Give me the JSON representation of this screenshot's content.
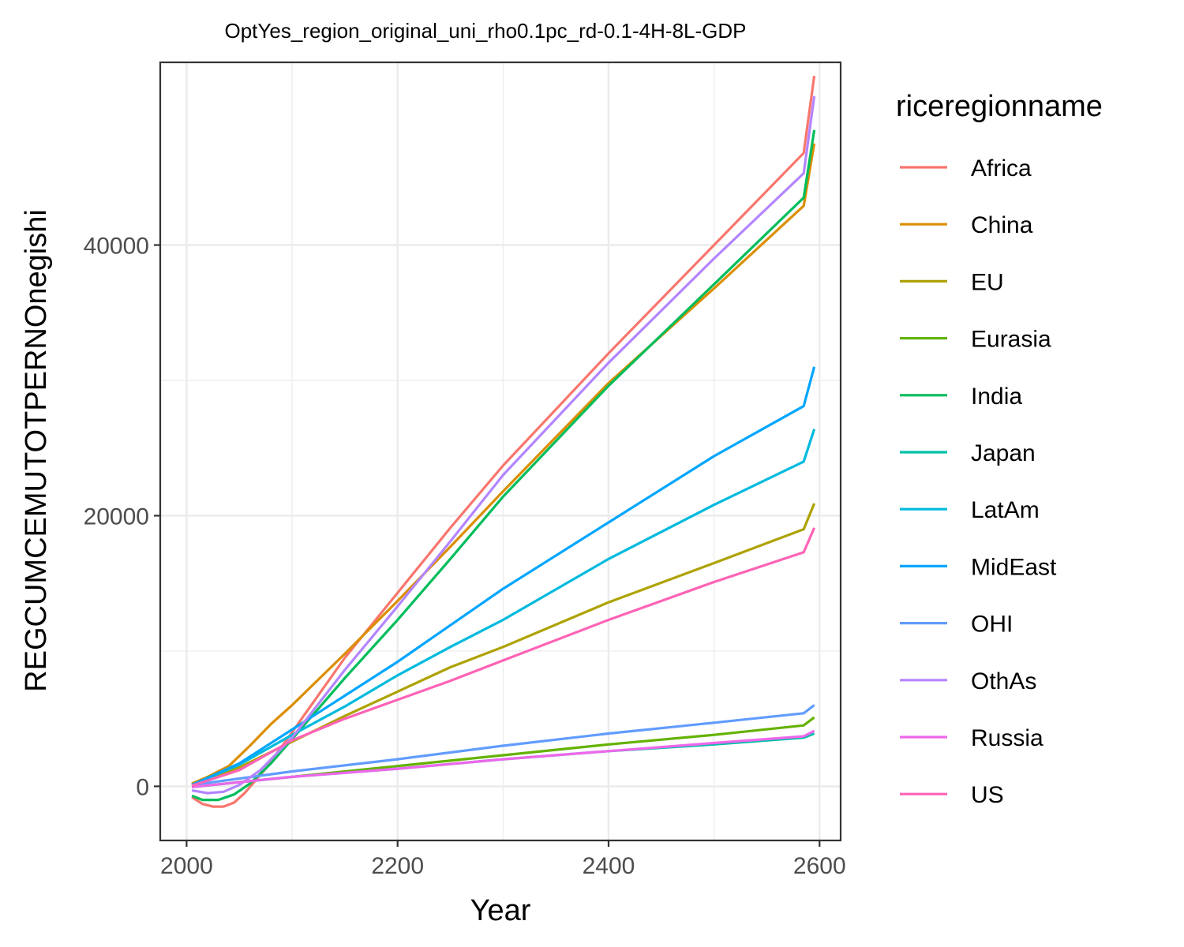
{
  "chart_data": {
    "type": "line",
    "title": "OptYes_region_original_uni_rho0.1pc_rd-0.1-4H-8L-GDP",
    "xlabel": "Year",
    "ylabel": "REGCUMCEMUTOTPERNOnegishi",
    "xlim": [
      1975,
      2620
    ],
    "ylim": [
      -4000,
      53500
    ],
    "x_ticks": [
      2000,
      2200,
      2400,
      2600
    ],
    "y_ticks": [
      0,
      20000,
      40000
    ],
    "x_tick_labels": [
      "2000",
      "2200",
      "2400",
      "2600"
    ],
    "y_tick_labels": [
      "0",
      "20000",
      "40000"
    ],
    "grid": true,
    "legend": {
      "title": "riceregionname",
      "position": "right"
    },
    "series": [
      {
        "name": "Africa",
        "color": "#F8766D",
        "points": [
          [
            2005,
            -800
          ],
          [
            2015,
            -1300
          ],
          [
            2025,
            -1500
          ],
          [
            2035,
            -1500
          ],
          [
            2045,
            -1200
          ],
          [
            2055,
            -500
          ],
          [
            2075,
            1300
          ],
          [
            2100,
            4000
          ],
          [
            2150,
            9500
          ],
          [
            2200,
            14300
          ],
          [
            2250,
            19100
          ],
          [
            2300,
            23700
          ],
          [
            2400,
            32000
          ],
          [
            2500,
            40000
          ],
          [
            2585,
            46800
          ],
          [
            2595,
            52500
          ]
        ]
      },
      {
        "name": "China",
        "color": "#DB8E00",
        "points": [
          [
            2005,
            200
          ],
          [
            2020,
            700
          ],
          [
            2040,
            1500
          ],
          [
            2060,
            3000
          ],
          [
            2080,
            4600
          ],
          [
            2100,
            6000
          ],
          [
            2150,
            9800
          ],
          [
            2200,
            13700
          ],
          [
            2250,
            17700
          ],
          [
            2300,
            21800
          ],
          [
            2400,
            29800
          ],
          [
            2500,
            36800
          ],
          [
            2585,
            42900
          ],
          [
            2595,
            47500
          ]
        ]
      },
      {
        "name": "EU",
        "color": "#AEA200",
        "points": [
          [
            2005,
            150
          ],
          [
            2050,
            1400
          ],
          [
            2100,
            3300
          ],
          [
            2150,
            5200
          ],
          [
            2200,
            7000
          ],
          [
            2250,
            8800
          ],
          [
            2300,
            10300
          ],
          [
            2400,
            13600
          ],
          [
            2500,
            16500
          ],
          [
            2585,
            19000
          ],
          [
            2595,
            20900
          ]
        ]
      },
      {
        "name": "Eurasia",
        "color": "#64B200",
        "points": [
          [
            2005,
            -50
          ],
          [
            2100,
            700
          ],
          [
            2200,
            1500
          ],
          [
            2300,
            2300
          ],
          [
            2400,
            3100
          ],
          [
            2500,
            3800
          ],
          [
            2585,
            4500
          ],
          [
            2595,
            5100
          ]
        ]
      },
      {
        "name": "India",
        "color": "#00BD5C",
        "points": [
          [
            2005,
            -700
          ],
          [
            2015,
            -1000
          ],
          [
            2030,
            -1000
          ],
          [
            2045,
            -600
          ],
          [
            2060,
            200
          ],
          [
            2080,
            1700
          ],
          [
            2100,
            3500
          ],
          [
            2150,
            8000
          ],
          [
            2200,
            12300
          ],
          [
            2250,
            16800
          ],
          [
            2300,
            21400
          ],
          [
            2400,
            29600
          ],
          [
            2500,
            37100
          ],
          [
            2585,
            43500
          ],
          [
            2595,
            48500
          ]
        ]
      },
      {
        "name": "Japan",
        "color": "#00C1A7",
        "points": [
          [
            2005,
            -50
          ],
          [
            2100,
            700
          ],
          [
            2200,
            1300
          ],
          [
            2300,
            2000
          ],
          [
            2400,
            2600
          ],
          [
            2500,
            3100
          ],
          [
            2585,
            3600
          ],
          [
            2595,
            3900
          ]
        ]
      },
      {
        "name": "LatAm",
        "color": "#00BADE",
        "points": [
          [
            2005,
            100
          ],
          [
            2050,
            1600
          ],
          [
            2100,
            3800
          ],
          [
            2150,
            5900
          ],
          [
            2200,
            8200
          ],
          [
            2250,
            10300
          ],
          [
            2300,
            12300
          ],
          [
            2400,
            16800
          ],
          [
            2500,
            20800
          ],
          [
            2585,
            24000
          ],
          [
            2595,
            26400
          ]
        ]
      },
      {
        "name": "MidEast",
        "color": "#00A6FF",
        "points": [
          [
            2005,
            100
          ],
          [
            2050,
            1700
          ],
          [
            2100,
            4200
          ],
          [
            2150,
            6700
          ],
          [
            2200,
            9200
          ],
          [
            2250,
            11900
          ],
          [
            2300,
            14600
          ],
          [
            2400,
            19500
          ],
          [
            2500,
            24400
          ],
          [
            2585,
            28100
          ],
          [
            2595,
            31000
          ]
        ]
      },
      {
        "name": "OHI",
        "color": "#619CFF",
        "points": [
          [
            2005,
            100
          ],
          [
            2100,
            1100
          ],
          [
            2200,
            2000
          ],
          [
            2300,
            3000
          ],
          [
            2400,
            3900
          ],
          [
            2500,
            4700
          ],
          [
            2585,
            5400
          ],
          [
            2595,
            6000
          ]
        ]
      },
      {
        "name": "OthAs",
        "color": "#B385FF",
        "points": [
          [
            2005,
            -300
          ],
          [
            2020,
            -500
          ],
          [
            2035,
            -400
          ],
          [
            2050,
            100
          ],
          [
            2070,
            1200
          ],
          [
            2100,
            3600
          ],
          [
            2150,
            8600
          ],
          [
            2200,
            13300
          ],
          [
            2250,
            18100
          ],
          [
            2300,
            23000
          ],
          [
            2400,
            31300
          ],
          [
            2500,
            39000
          ],
          [
            2585,
            45300
          ],
          [
            2595,
            51000
          ]
        ]
      },
      {
        "name": "Russia",
        "color": "#EF67EB",
        "points": [
          [
            2005,
            -50
          ],
          [
            2100,
            700
          ],
          [
            2200,
            1300
          ],
          [
            2300,
            2000
          ],
          [
            2400,
            2600
          ],
          [
            2500,
            3200
          ],
          [
            2585,
            3700
          ],
          [
            2595,
            4100
          ]
        ]
      },
      {
        "name": "US",
        "color": "#FF63B6",
        "points": [
          [
            2005,
            50
          ],
          [
            2050,
            1200
          ],
          [
            2100,
            3400
          ],
          [
            2150,
            5000
          ],
          [
            2200,
            6400
          ],
          [
            2250,
            7800
          ],
          [
            2300,
            9300
          ],
          [
            2400,
            12300
          ],
          [
            2500,
            15100
          ],
          [
            2585,
            17300
          ],
          [
            2595,
            19100
          ]
        ]
      }
    ]
  }
}
